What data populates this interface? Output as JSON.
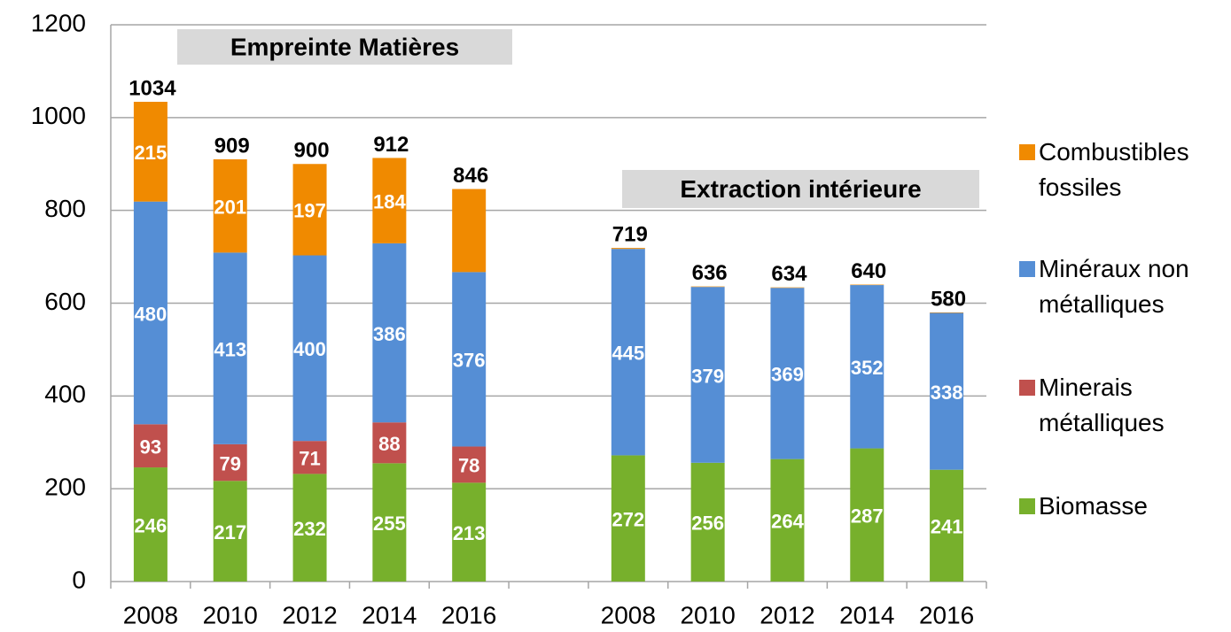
{
  "chart_data": {
    "type": "stacked_bar",
    "categories": [
      "2008",
      "2010",
      "2012",
      "2014",
      "2016",
      null,
      "2008",
      "2010",
      "2012",
      "2014",
      "2016"
    ],
    "series": [
      {
        "name": "Biomasse",
        "color": "#77b02c",
        "values": [
          246,
          217,
          232,
          255,
          213,
          null,
          272,
          256,
          264,
          287,
          241
        ],
        "value_labels": [
          "246",
          "217",
          "232",
          "255",
          "213",
          null,
          "272",
          "256",
          "264",
          "287",
          "241"
        ]
      },
      {
        "name": "Minerais métalliques",
        "color": "#c0504d",
        "values": [
          93,
          79,
          71,
          88,
          78,
          null,
          0,
          0,
          0,
          0,
          0
        ],
        "value_labels": [
          "93",
          "79",
          "71",
          "88",
          "78",
          null,
          null,
          null,
          null,
          "0",
          "0"
        ]
      },
      {
        "name": "Minéraux non métalliques",
        "color": "#558ed5",
        "values": [
          480,
          413,
          400,
          386,
          376,
          null,
          445,
          379,
          369,
          352,
          338
        ],
        "value_labels": [
          "480",
          "413",
          "400",
          "386",
          "376",
          null,
          "445",
          "379",
          "369",
          "352",
          "338"
        ]
      },
      {
        "name": "Combustibles fossiles",
        "color": "#f08a00",
        "values": [
          215,
          201,
          197,
          184,
          179,
          null,
          2,
          1,
          1,
          1,
          1
        ],
        "value_labels": [
          "215",
          "201",
          "197",
          "184",
          null,
          null,
          null,
          null,
          null,
          null,
          null
        ]
      }
    ],
    "totals": [
      1034,
      909,
      900,
      912,
      846,
      null,
      719,
      636,
      634,
      640,
      580
    ],
    "annotations": [
      "Empreinte Matières",
      "Extraction intérieure"
    ],
    "ylim": [
      0,
      1200
    ],
    "yticks": [
      0,
      200,
      400,
      600,
      800,
      1000,
      1200
    ],
    "grid": true,
    "legend": "right"
  }
}
